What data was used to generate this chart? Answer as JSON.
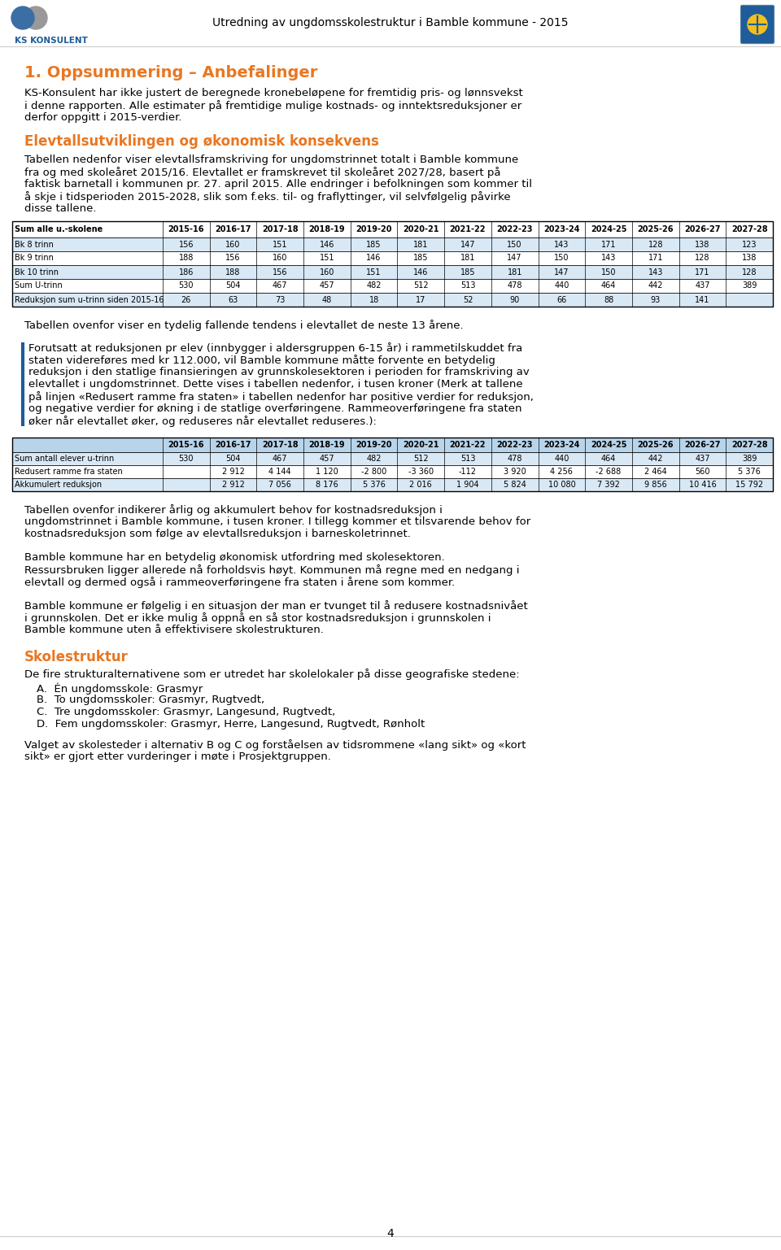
{
  "header_title": "Utredning av ungdomsskolestruktur i Bamble kommune - 2015",
  "section1_title": "1. Oppsummering – Anbefalinger",
  "section1_body": "KS-Konsulent har ikke justert de beregnede kronebeløpene for fremtidig pris- og lønnsvekst\ni denne rapporten. Alle estimater på fremtidige mulige kostnads- og inntektsreduksjoner er\nderfor oppgitt i 2015-verdier.",
  "section2_title": "Elevtallsutviklingen og økonomisk konsekvens",
  "section2_body": "Tabellen nedenfor viser elevtallsframskriving for ungdomstrinnet totalt i Bamble kommune\nfra og med skoleåret 2015/16. Elevtallet er framskrevet til skoleåret 2027/28, basert på\nfaktisk barnetall i kommunen pr. 27. april 2015. Alle endringer i befolkningen som kommer til\nå skje i tidsperioden 2015-2028, slik som f.eks. til- og fraflyttinger, vil selvfølgelig påvirke\ndisse tallene.",
  "table1_headers": [
    "Sum alle u.-skolene",
    "2015-16",
    "2016-17",
    "2017-18",
    "2018-19",
    "2019-20",
    "2020-21",
    "2021-22",
    "2022-23",
    "2023-24",
    "2024-25",
    "2025-26",
    "2026-27",
    "2027-28"
  ],
  "table1_rows": [
    [
      "Bk 8 trinn",
      "156",
      "160",
      "151",
      "146",
      "185",
      "181",
      "147",
      "150",
      "143",
      "171",
      "128",
      "138",
      "123"
    ],
    [
      "Bk 9 trinn",
      "188",
      "156",
      "160",
      "151",
      "146",
      "185",
      "181",
      "147",
      "150",
      "143",
      "171",
      "128",
      "138"
    ],
    [
      "Bk 10 trinn",
      "186",
      "188",
      "156",
      "160",
      "151",
      "146",
      "185",
      "181",
      "147",
      "150",
      "143",
      "171",
      "128"
    ],
    [
      "Sum U-trinn",
      "530",
      "504",
      "467",
      "457",
      "482",
      "512",
      "513",
      "478",
      "440",
      "464",
      "442",
      "437",
      "389"
    ],
    [
      "Reduksjon sum u-trinn siden 2015-16",
      "26",
      "63",
      "73",
      "48",
      "18",
      "17",
      "52",
      "90",
      "66",
      "88",
      "93",
      "141"
    ]
  ],
  "para1": "Tabellen ovenfor viser en tydelig fallende tendens i elevtallet de neste 13 årene.",
  "para2": "Forutsatt at reduksjonen pr elev (innbygger i aldersgruppen 6-15 år) i rammetilskuddet fra\nstaten videreføres med kr 112.000, vil Bamble kommune måtte forvente en betydelig\nreduksjon i den statlige finansieringen av grunnskolesektoren i perioden for framskriving av\nelevtallet i ungdomstrinnet. Dette vises i tabellen nedenfor, i tusen kroner (Merk at tallene\npå linjen «Redusert ramme fra staten» i tabellen nedenfor har positive verdier for reduksjon,\nog negative verdier for økning i de statlige overføringene. Rammeoverføringene fra staten\nøker når elevtallet øker, og reduseres når elevtallet reduseres.):",
  "table2_headers": [
    "",
    "2015-16",
    "2016-17",
    "2017-18",
    "2018-19",
    "2019-20",
    "2020-21",
    "2021-22",
    "2022-23",
    "2023-24",
    "2024-25",
    "2025-26",
    "2026-27",
    "2027-28"
  ],
  "table2_rows": [
    [
      "Sum antall elever u-trinn",
      "530",
      "504",
      "467",
      "457",
      "482",
      "512",
      "513",
      "478",
      "440",
      "464",
      "442",
      "437",
      "389"
    ],
    [
      "Redusert ramme fra staten",
      "",
      "2 912",
      "4 144",
      "1 120",
      "-2 800",
      "-3 360",
      "-112",
      "3 920",
      "4 256",
      "-2 688",
      "2 464",
      "560",
      "5 376"
    ],
    [
      "Akkumulert reduksjon",
      "",
      "2 912",
      "7 056",
      "8 176",
      "5 376",
      "2 016",
      "1 904",
      "5 824",
      "10 080",
      "7 392",
      "9 856",
      "10 416",
      "15 792"
    ]
  ],
  "para3": "Tabellen ovenfor indikerer årlig og akkumulert behov for kostnadsreduksjon i\nungdomstrinnet i Bamble kommune, i tusen kroner. I tillegg kommer et tilsvarende behov for\nkostnadsreduksjon som følge av elevtallsreduksjon i barneskoletrinnet.",
  "para4": "Bamble kommune har en betydelig økonomisk utfordring med skolesektoren.\nRessursbruken ligger allerede nå forholdsvis høyt. Kommunen må regne med en nedgang i\nelevtall og dermed også i rammeoverføringene fra staten i årene som kommer.",
  "para5": "Bamble kommune er følgelig i en situasjon der man er tvunget til å redusere kostnadsnivået\ni grunnskolen. Det er ikke mulig å oppnå en så stor kostnadsreduksjon i grunnskolen i\nBamble kommune uten å effektivisere skolestrukturen.",
  "section3_title": "Skolestruktur",
  "section3_body": "De fire strukturalternativene som er utredet har skolelokaler på disse geografiske stedene:",
  "section3_list": [
    "A.  Én ungdomsskole: Grasmyr",
    "B.  To ungdomsskoler: Grasmyr, Rugtvedt,",
    "C.  Tre ungdomsskoler: Grasmyr, Langesund, Rugtvedt,",
    "D.  Fem ungdomsskoler: Grasmyr, Herre, Langesund, Rugtvedt, Rønholt"
  ],
  "para6": "Valget av skolesteder i alternativ B og C og forståelsen av tidsrommene «lang sikt» og «kort\nsikt» er gjort etter vurderinger i møte i Prosjektgruppen.",
  "page_number": "4",
  "orange_color": "#E87722",
  "blue_color": "#1F5C99",
  "table1_row_bg_alt": "#D9E8F5",
  "table2_header_bg": "#B8D4EA",
  "table2_row_bg_alt": "#D9E8F5",
  "border_left_color": "#1F5C99"
}
